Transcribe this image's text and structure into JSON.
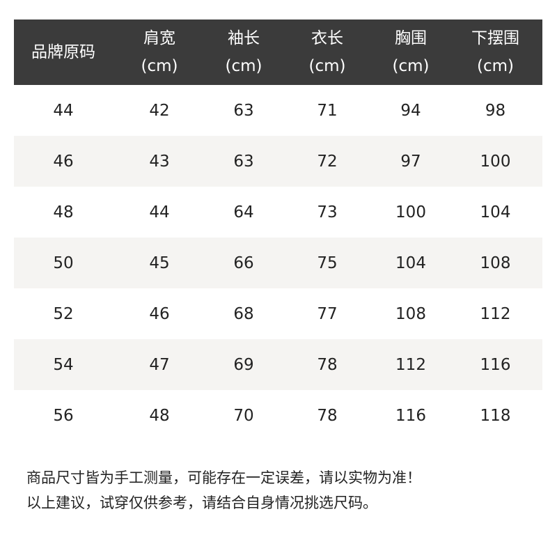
{
  "header": [
    {
      "title": "品牌原码",
      "unit": ""
    },
    {
      "title": "肩宽",
      "unit": "(cm)"
    },
    {
      "title": "袖长",
      "unit": "(cm)"
    },
    {
      "title": "衣长",
      "unit": "(cm)"
    },
    {
      "title": "胸围",
      "unit": "(cm)"
    },
    {
      "title": "下摆围",
      "unit": "(cm)"
    }
  ],
  "rows": [
    [
      "44",
      "42",
      "63",
      "71",
      "94",
      "98"
    ],
    [
      "46",
      "43",
      "63",
      "72",
      "97",
      "100"
    ],
    [
      "48",
      "44",
      "64",
      "73",
      "100",
      "104"
    ],
    [
      "50",
      "45",
      "66",
      "75",
      "104",
      "108"
    ],
    [
      "52",
      "46",
      "68",
      "77",
      "108",
      "112"
    ],
    [
      "54",
      "47",
      "69",
      "78",
      "112",
      "116"
    ],
    [
      "56",
      "48",
      "70",
      "78",
      "116",
      "118"
    ]
  ],
  "notes": [
    "商品尺寸皆为手工测量，可能存在一定误差，请以实物为准！",
    "以上建议，试穿仅供参考，请结合自身情况挑选尺码。"
  ],
  "colors": {
    "header_bg": "#3b3b3b",
    "alt_row_bg": "#f5f4f2"
  }
}
